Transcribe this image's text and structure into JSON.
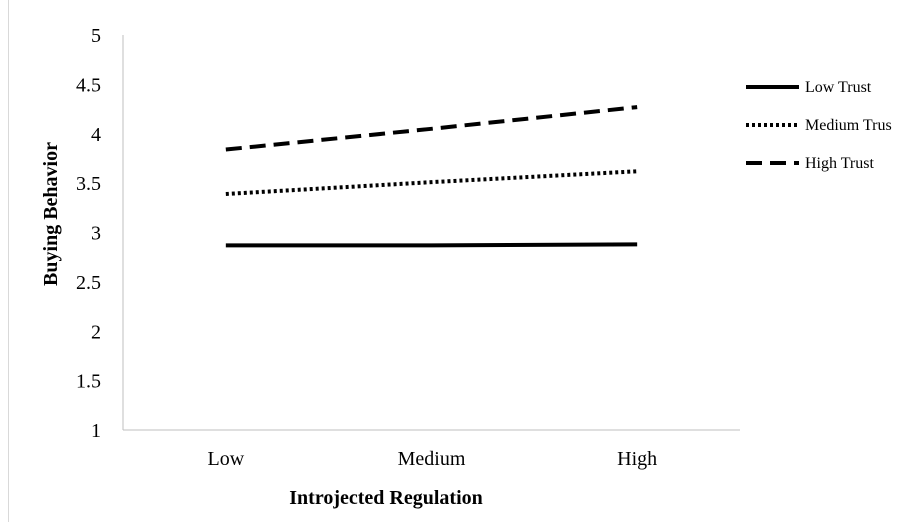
{
  "chart_data": {
    "type": "line",
    "categories": [
      "Low",
      "Medium",
      "High"
    ],
    "series": [
      {
        "name": "Low Trust",
        "values": [
          2.87,
          2.87,
          2.88
        ],
        "dash": "solid",
        "color": "#000000"
      },
      {
        "name": "Medium Trus",
        "values": [
          3.39,
          3.51,
          3.62
        ],
        "dash": "dotted",
        "color": "#000000"
      },
      {
        "name": "High Trust",
        "values": [
          3.84,
          4.05,
          4.27
        ],
        "dash": "dashed",
        "color": "#000000"
      }
    ],
    "title": "",
    "xlabel": "Introjected Regulation",
    "ylabel": "Buying Behavior",
    "ylim": [
      1,
      5
    ],
    "yticks": [
      "1",
      "1.5",
      "2",
      "2.5",
      "3",
      "3.5",
      "4",
      "4.5",
      "5"
    ],
    "grid": false,
    "legend": "right"
  }
}
